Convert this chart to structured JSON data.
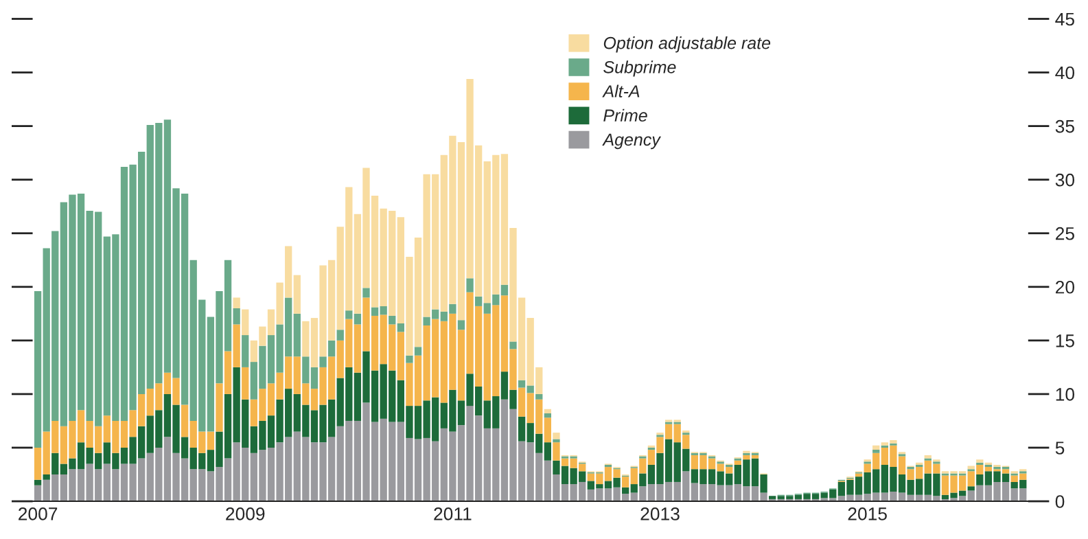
{
  "chart_data": {
    "type": "bar",
    "stacked": true,
    "categories": [
      "2007",
      null,
      null,
      null,
      null,
      null,
      null,
      null,
      null,
      null,
      null,
      null,
      null,
      null,
      null,
      null,
      null,
      null,
      null,
      null,
      null,
      null,
      null,
      null,
      "2009",
      null,
      null,
      null,
      null,
      null,
      null,
      null,
      null,
      null,
      null,
      null,
      null,
      null,
      null,
      null,
      null,
      null,
      null,
      null,
      null,
      null,
      null,
      null,
      "2011",
      null,
      null,
      null,
      null,
      null,
      null,
      null,
      null,
      null,
      null,
      null,
      null,
      null,
      null,
      null,
      null,
      null,
      null,
      null,
      null,
      null,
      null,
      null,
      "2013",
      null,
      null,
      null,
      null,
      null,
      null,
      null,
      null,
      null,
      null,
      null,
      null,
      null,
      null,
      null,
      null,
      null,
      null,
      null,
      null,
      null,
      null,
      null,
      "2015",
      null,
      null,
      null,
      null,
      null,
      null,
      null,
      null,
      null,
      null,
      null,
      null,
      null,
      null,
      null,
      null,
      null,
      null
    ],
    "series": [
      {
        "name": "Agency",
        "color": "#9a9a9e",
        "values": [
          1.5,
          2,
          2.5,
          2.5,
          3,
          3,
          3.5,
          3,
          3.5,
          3,
          3.5,
          3.5,
          4,
          4.5,
          5,
          6,
          4.5,
          4,
          3,
          3,
          2.8,
          3.2,
          4,
          5.5,
          5,
          4.5,
          4.8,
          5,
          5.5,
          6,
          6.5,
          6,
          5.5,
          5.5,
          6,
          7,
          7.5,
          7.5,
          9.2,
          7.4,
          7.7,
          7.4,
          7.4,
          5.9,
          5.8,
          5.9,
          5.6,
          6.8,
          6.5,
          7.1,
          8.9,
          8.0,
          6.8,
          6.8,
          9.5,
          8.6,
          5.6,
          5.5,
          4.5,
          3.8,
          2.5,
          1.6,
          1.6,
          1.8,
          1.1,
          1.2,
          1.2,
          1.3,
          0.7,
          0.8,
          1.4,
          1.6,
          1.6,
          1.8,
          1.8,
          2.8,
          1.7,
          1.6,
          1.6,
          1.5,
          1.5,
          1.6,
          1.4,
          1.4,
          0.8,
          0.2,
          0.2,
          0.2,
          0.2,
          0.2,
          0.2,
          0.3,
          0.3,
          0.5,
          0.6,
          0.6,
          0.7,
          0.8,
          0.8,
          0.9,
          0.8,
          0.6,
          0.6,
          0.6,
          0.5,
          0.2,
          0.3,
          0.5,
          1.0,
          1.5,
          1.5,
          1.8,
          1.8,
          1.2,
          1.2
        ]
      },
      {
        "name": "Prime",
        "color": "#1d6b3a",
        "values": [
          0.5,
          0.5,
          2,
          1,
          1,
          2.5,
          1.5,
          1.5,
          2,
          1.5,
          1.5,
          2.5,
          3,
          3.5,
          3.5,
          4,
          4.5,
          2,
          2,
          1.5,
          2,
          3.3,
          6,
          7,
          4.5,
          2.5,
          2.7,
          3,
          4,
          4.5,
          3.5,
          3,
          3,
          3.5,
          3.5,
          4.5,
          5,
          4.5,
          4.8,
          4.8,
          5.1,
          4.8,
          3.9,
          3.0,
          3.1,
          3.5,
          4.1,
          2.4,
          3.9,
          2.3,
          3.0,
          2.7,
          2.6,
          3.0,
          2.6,
          1.8,
          2.3,
          1.8,
          1.8,
          1.7,
          1.3,
          1.7,
          1.5,
          1.0,
          0.8,
          0.4,
          0.7,
          0.9,
          0.6,
          0.8,
          1.2,
          1.8,
          2.9,
          4.0,
          3.7,
          2.1,
          1.3,
          1.4,
          1.4,
          1.3,
          1.1,
          1.8,
          2.5,
          2.6,
          1.7,
          0.3,
          0.3,
          0.3,
          0.4,
          0.5,
          0.5,
          0.5,
          0.8,
          1.3,
          1.4,
          1.7,
          2.0,
          2.2,
          2.6,
          2.3,
          1.7,
          1.4,
          1.5,
          2.0,
          2.1,
          0.4,
          0.5,
          0.5,
          0.4,
          1.0,
          1.3,
          1.0,
          0.8,
          0.6,
          0.8
        ]
      },
      {
        "name": "Alt-A",
        "color": "#f5b54c",
        "values": [
          3,
          4,
          3,
          3.5,
          3.5,
          3,
          2.5,
          2.5,
          2.5,
          3,
          2.5,
          2.5,
          3,
          2.5,
          2.5,
          2,
          2.5,
          3,
          2.5,
          2,
          1.7,
          4.5,
          4,
          4,
          3,
          2.5,
          3,
          3,
          2.5,
          3,
          3.5,
          2,
          2,
          3.5,
          4,
          3.5,
          4.5,
          4.5,
          5.0,
          5.1,
          4.6,
          4.3,
          4.5,
          4.0,
          4.7,
          7.0,
          7.3,
          7.6,
          7.1,
          6.6,
          7.6,
          7.5,
          8.1,
          8.5,
          7.1,
          3.8,
          2.7,
          2.8,
          3.2,
          2.3,
          1.7,
          0.7,
          0.9,
          0.7,
          0.7,
          1.0,
          1.3,
          0.8,
          1.0,
          1.5,
          1.4,
          1.4,
          1.5,
          1.4,
          1.7,
          1.3,
          1.3,
          1.3,
          1.0,
          0.7,
          0.6,
          0.4,
          0.4,
          0.3,
          0,
          0,
          0,
          0,
          0,
          0,
          0,
          0,
          0,
          0.1,
          0.1,
          0.3,
          0.8,
          1.5,
          1.6,
          2.0,
          1.7,
          1.0,
          1.1,
          1.2,
          0.9,
          1.8,
          1.6,
          1.4,
          1.4,
          0.9,
          0.4,
          0.2,
          0.4,
          0.6,
          0.6
        ]
      },
      {
        "name": "Subprime",
        "color": "#6aaa8a",
        "values": [
          14.6,
          17.1,
          17.7,
          20.9,
          21.1,
          20.2,
          19.6,
          20.0,
          16.7,
          17.4,
          23.7,
          22.9,
          22.6,
          24.6,
          24.3,
          23.6,
          17.7,
          19.7,
          15.0,
          12.3,
          10.7,
          8.6,
          8.5,
          1.5,
          3,
          3.5,
          4,
          4.5,
          4.5,
          5.5,
          4,
          2.5,
          2,
          1.0,
          1.5,
          1.0,
          0.8,
          1.0,
          0.9,
          0.8,
          0.8,
          0.8,
          0.8,
          0.7,
          0.8,
          0.8,
          0.9,
          0.9,
          0.9,
          0.9,
          1.3,
          0.9,
          1.0,
          1.0,
          1.0,
          0.7,
          0.7,
          0.7,
          0.5,
          0.4,
          0.3,
          0.2,
          0.2,
          0.1,
          0.1,
          0.1,
          0.2,
          0.1,
          0.1,
          0.1,
          0.2,
          0.2,
          0.2,
          0.2,
          0.2,
          0.2,
          0.2,
          0.2,
          0.2,
          0.2,
          0.2,
          0.2,
          0.2,
          0.2,
          0,
          0,
          0.1,
          0.1,
          0.1,
          0.1,
          0.1,
          0.1,
          0.1,
          0.1,
          0.1,
          0.1,
          0.2,
          0.3,
          0.2,
          0.2,
          0.2,
          0.2,
          0.2,
          0.2,
          0.2,
          0.2,
          0.2,
          0.2,
          0.2,
          0.2,
          0.2,
          0.2,
          0.2,
          0.2,
          0.2
        ]
      },
      {
        "name": "Option adjustable rate",
        "color": "#f8dca0",
        "values": [
          0,
          0,
          0,
          0,
          0,
          0,
          0,
          0,
          0,
          0,
          0,
          0,
          0,
          0,
          0,
          0,
          0,
          0,
          0,
          0,
          0,
          0,
          0,
          1.0,
          2.4,
          2.0,
          1.8,
          2.4,
          3.9,
          4.8,
          3.6,
          3.3,
          4.6,
          8.5,
          7.5,
          9.6,
          11.5,
          9.3,
          11.2,
          10.4,
          9.1,
          9.8,
          9.9,
          9.2,
          10.2,
          13.3,
          12.6,
          14.6,
          15.7,
          16.6,
          18.6,
          14.1,
          13.2,
          13.0,
          12.2,
          10.6,
          7.7,
          6.3,
          2.5,
          0.4,
          0.6,
          0.1,
          0.1,
          0.1,
          0.1,
          0.1,
          0.1,
          0.1,
          0.1,
          0.1,
          0.1,
          0.2,
          0.2,
          0.2,
          0.2,
          0.2,
          0.1,
          0.1,
          0.1,
          0.1,
          0.1,
          0.1,
          0.2,
          0.1,
          0.1,
          0,
          0,
          0,
          0,
          0,
          0,
          0,
          0,
          0,
          0.1,
          0.1,
          0.2,
          0.4,
          0.3,
          0.3,
          0.2,
          0.1,
          0.2,
          0.3,
          0.2,
          0.2,
          0.2,
          0.2,
          0.3,
          0.3,
          0.2,
          0.2,
          0.1,
          0.2,
          0.2
        ]
      }
    ],
    "ylim": [
      0,
      45
    ],
    "yticks": [
      0,
      5,
      10,
      15,
      20,
      25,
      30,
      35,
      40,
      45
    ],
    "grid": false,
    "legend": "top"
  }
}
